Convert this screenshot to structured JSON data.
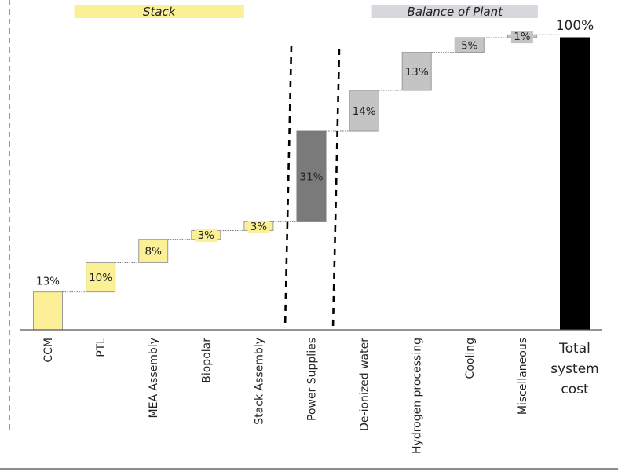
{
  "chart_data": {
    "type": "bar",
    "subtype": "waterfall",
    "groups": [
      {
        "name": "Stack",
        "color": "#fbf096",
        "categories": [
          "CCM",
          "PTL",
          "MEA Assembly",
          "Biopolar",
          "Stack Assembly"
        ]
      },
      {
        "name": "Balance of Plant",
        "color": "#d8d8dc",
        "categories": [
          "De-ionized water",
          "Hydrogen processing",
          "Cooling",
          "Miscellaneous"
        ]
      }
    ],
    "categories": [
      "CCM",
      "PTL",
      "MEA Assembly",
      "Biopolar",
      "Stack Assembly",
      "Power Supplies",
      "De-ionized water",
      "Hydrogen processing",
      "Cooling",
      "Miscellaneous",
      "Total system cost"
    ],
    "values": [
      13,
      10,
      8,
      3,
      3,
      31,
      14,
      13,
      5,
      1,
      100
    ],
    "value_labels": [
      "13%",
      "10%",
      "8%",
      "3%",
      "3%",
      "31%",
      "14%",
      "13%",
      "5%",
      "1%",
      "100%"
    ],
    "bar_colors": [
      "#fbf096",
      "#fbf096",
      "#fbf096",
      "#fbf096",
      "#fbf096",
      "#7a7a7a",
      "#c4c4c4",
      "#c4c4c4",
      "#c4c4c4",
      "#c4c4c4",
      "#000000"
    ],
    "ylim": [
      0,
      100
    ],
    "grid": false,
    "title": "",
    "xlabel": "",
    "ylabel": ""
  }
}
